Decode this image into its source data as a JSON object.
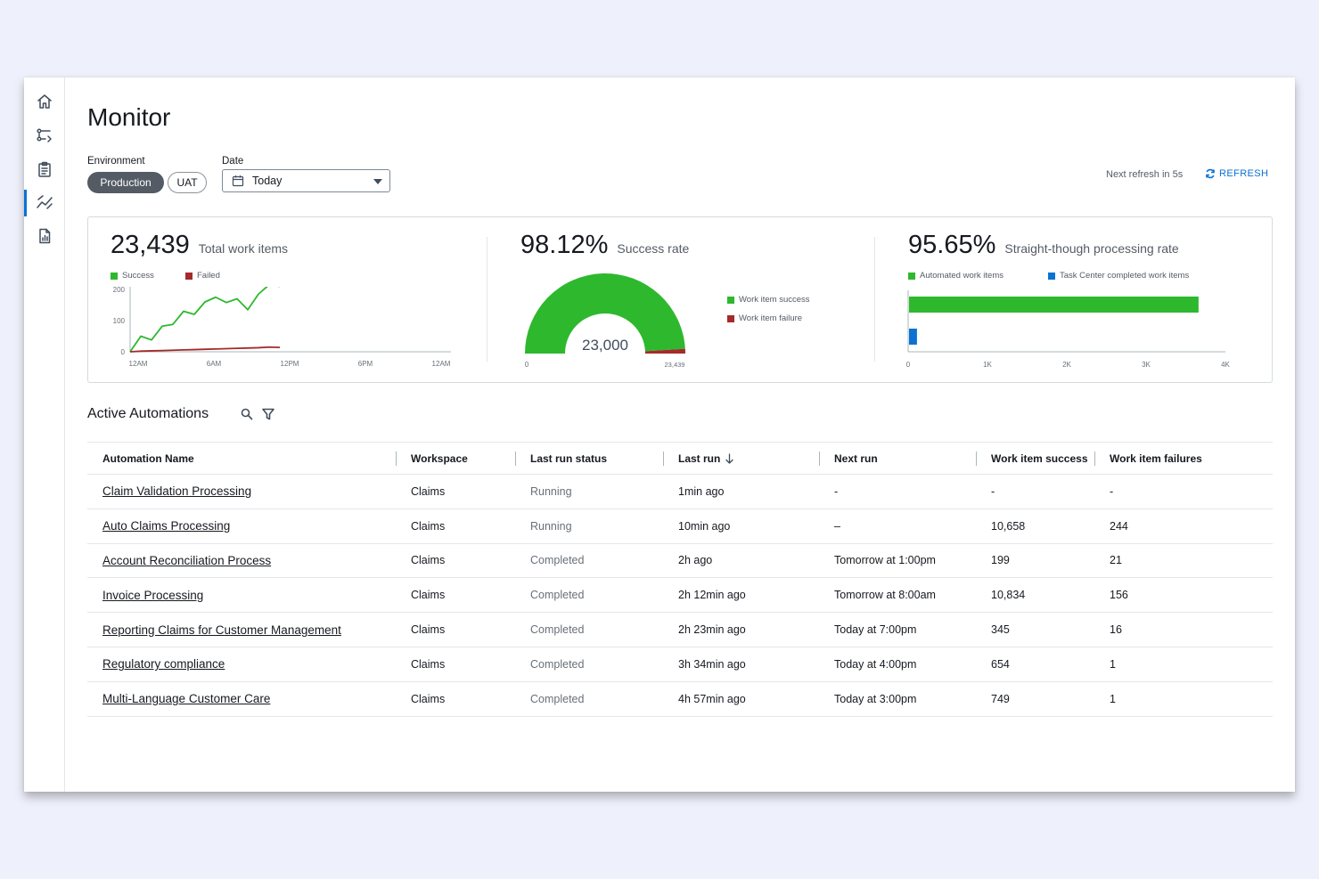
{
  "page": {
    "title": "Monitor"
  },
  "nav": [
    {
      "name": "home-icon"
    },
    {
      "name": "workflow-icon"
    },
    {
      "name": "clipboard-icon"
    },
    {
      "name": "monitor-icon",
      "active": true
    },
    {
      "name": "report-icon"
    }
  ],
  "filters": {
    "environment_label": "Environment",
    "environment_options": [
      "Production",
      "UAT"
    ],
    "environment_selected": "Production",
    "date_label": "Date",
    "date_value": "Today"
  },
  "refresh": {
    "next_text": "Next refresh in 5s",
    "button_label": "REFRESH"
  },
  "kpis": {
    "total": {
      "value": "23,439",
      "caption": "Total work items"
    },
    "success_rate": {
      "value": "98.12%",
      "caption": "Success rate"
    },
    "stp_rate": {
      "value": "95.65%",
      "caption": "Straight-though processing rate"
    }
  },
  "chart_data": [
    {
      "type": "line",
      "legend": [
        "Success",
        "Failed"
      ],
      "x_ticks": [
        "12AM",
        "6AM",
        "12PM",
        "6PM",
        "12AM"
      ],
      "y_ticks": [
        "0",
        "100",
        "200"
      ],
      "ylim": [
        0,
        200
      ],
      "series": [
        {
          "name": "Success",
          "color": "#2eb82e",
          "x": [
            0,
            1,
            2,
            3,
            4,
            5,
            6,
            7,
            8,
            9,
            10,
            11,
            12,
            13,
            14
          ],
          "values": [
            0,
            50,
            38,
            82,
            88,
            130,
            120,
            160,
            175,
            158,
            170,
            135,
            185,
            215,
            210
          ]
        },
        {
          "name": "Failed",
          "color": "#a52a2a",
          "x": [
            0,
            1,
            2,
            3,
            4,
            5,
            6,
            7,
            8,
            9,
            10,
            11,
            12,
            13,
            14
          ],
          "values": [
            0,
            2,
            3,
            4,
            5,
            6,
            7,
            8,
            9,
            10,
            11,
            12,
            13,
            15,
            14
          ]
        }
      ],
      "x_max": 30
    },
    {
      "type": "pie",
      "subtype": "half-donut",
      "center_label": "23,000",
      "min_label": "0",
      "max_label": "23,439",
      "legend": [
        "Work item success",
        "Work item failure"
      ],
      "values": [
        23000,
        439
      ],
      "colors": [
        "#2eb82e",
        "#a52a2a"
      ]
    },
    {
      "type": "bar",
      "orientation": "horizontal",
      "legend": [
        "Automated work items",
        "Task Center completed work items"
      ],
      "categories": [
        "Automated work items",
        "Task Center completed work items"
      ],
      "values": [
        3650,
        100
      ],
      "colors": [
        "#2eb82e",
        "#0972d3"
      ],
      "x_ticks": [
        "0",
        "1K",
        "2K",
        "3K",
        "4K"
      ],
      "xlim": [
        0,
        4000
      ]
    }
  ],
  "automations": {
    "title": "Active Automations",
    "columns": [
      "Automation Name",
      "Workspace",
      "Last run status",
      "Last run",
      "Next run",
      "Work item success",
      "Work item failures"
    ],
    "rows": [
      [
        "Claim Validation Processing",
        "Claims",
        "Running",
        "1min ago",
        "-",
        "-",
        "-"
      ],
      [
        "Auto Claims Processing",
        "Claims",
        "Running",
        "10min ago",
        "–",
        "10,658",
        "244"
      ],
      [
        "Account Reconciliation Process",
        "Claims",
        "Completed",
        "2h ago",
        "Tomorrow at 1:00pm",
        "199",
        "21"
      ],
      [
        "Invoice Processing",
        "Claims",
        "Completed",
        "2h 12min ago",
        "Tomorrow at 8:00am",
        "10,834",
        "156"
      ],
      [
        "Reporting Claims for Customer Management",
        "Claims",
        "Completed",
        "2h 23min ago",
        "Today at 7:00pm",
        "345",
        "16"
      ],
      [
        "Regulatory compliance",
        "Claims",
        "Completed",
        "3h 34min ago",
        "Today at 4:00pm",
        "654",
        "1"
      ],
      [
        "Multi-Language Customer Care",
        "Claims",
        "Completed",
        "4h 57min ago",
        "Today at 3:00pm",
        "749",
        "1"
      ]
    ]
  }
}
